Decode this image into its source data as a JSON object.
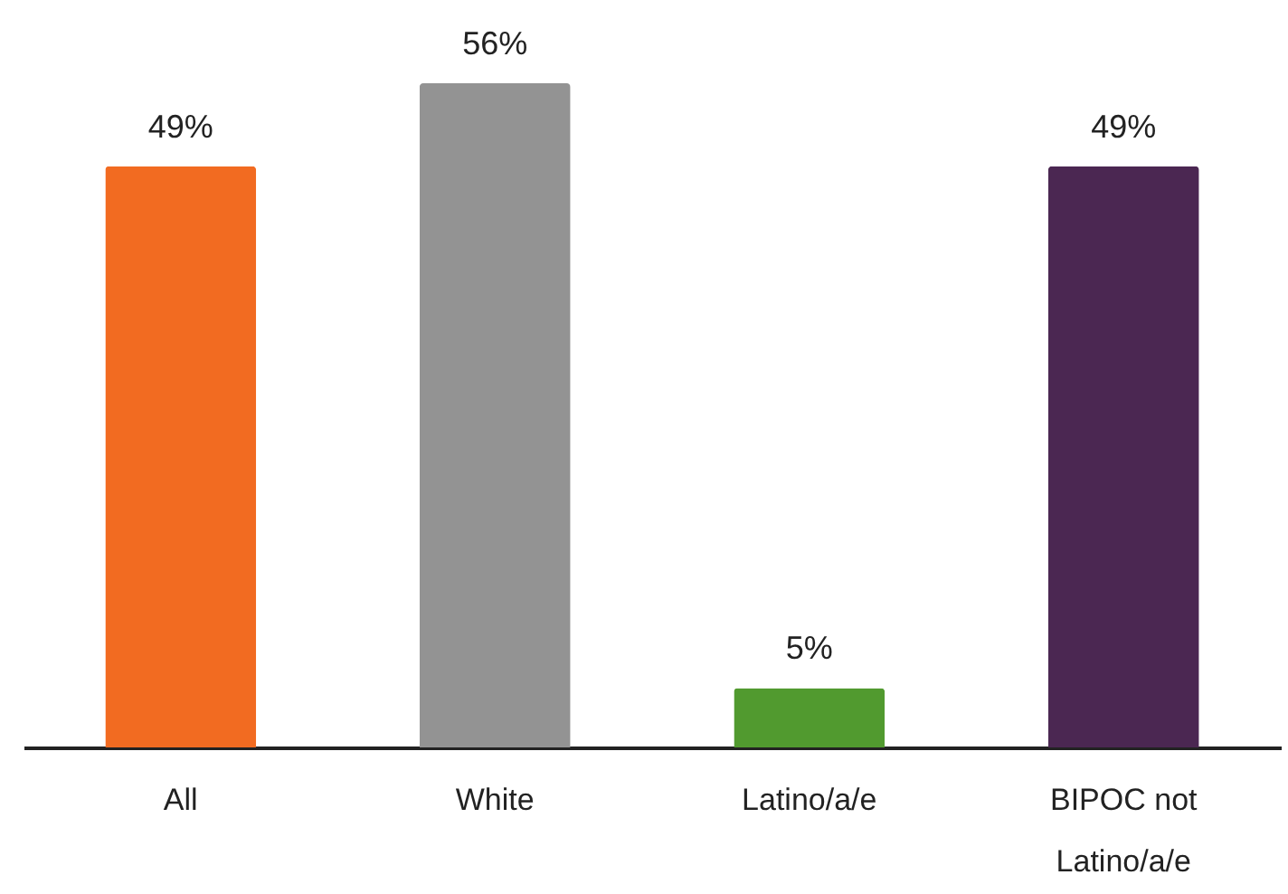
{
  "chart_data": {
    "type": "bar",
    "categories": [
      "All",
      "White",
      "Latino/a/e",
      "BIPOC not Latino/a/e"
    ],
    "values": [
      49,
      56,
      5,
      49
    ],
    "colors": [
      "#f26b21",
      "#939393",
      "#519a2f",
      "#4b2752"
    ],
    "value_labels": [
      "49%",
      "56%",
      "5%",
      "49%"
    ],
    "grid": false,
    "legend": false
  }
}
